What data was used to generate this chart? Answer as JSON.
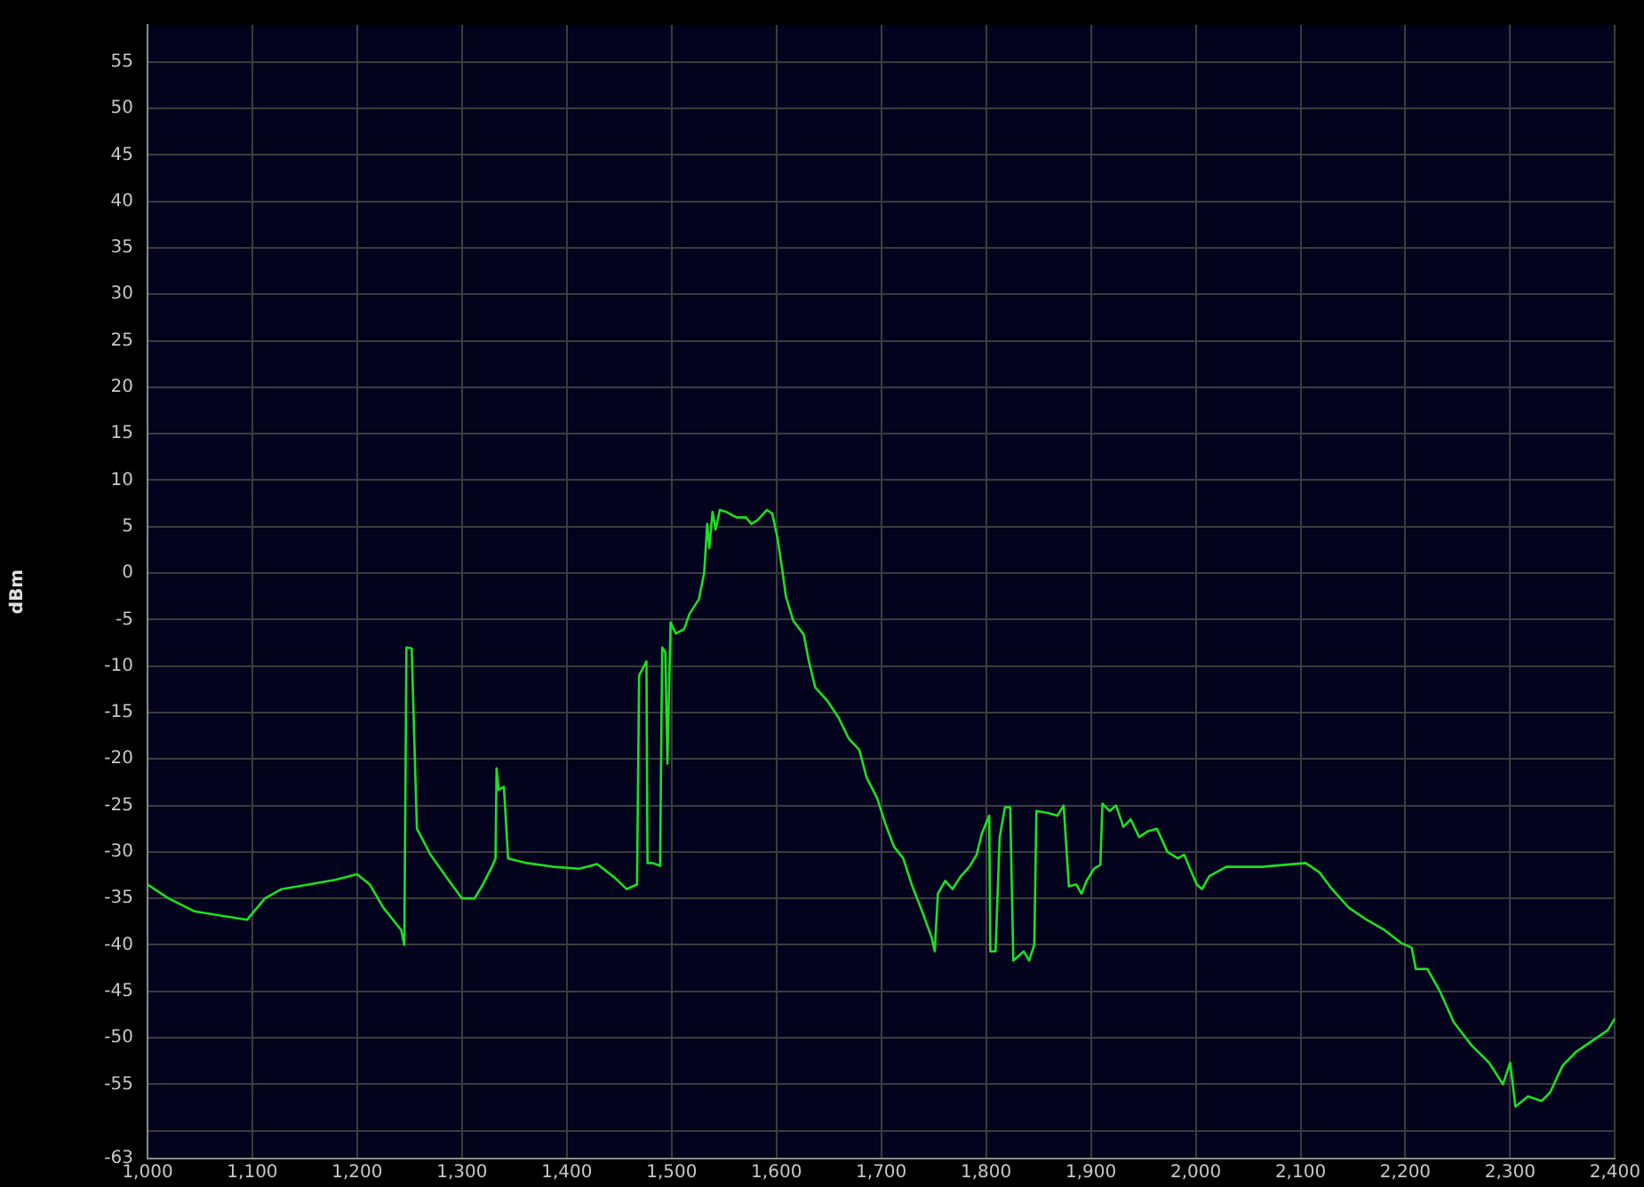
{
  "chart_data": {
    "type": "line",
    "ylabel": "dBm",
    "x": [
      1000,
      1020,
      1045,
      1078,
      1095,
      1112,
      1128,
      1154,
      1179,
      1200,
      1212,
      1225,
      1242,
      1245,
      1247,
      1252,
      1257,
      1270,
      1287,
      1300,
      1312,
      1320,
      1329,
      1332,
      1333,
      1335,
      1340,
      1344,
      1362,
      1387,
      1412,
      1429,
      1446,
      1457,
      1467,
      1469,
      1476,
      1477,
      1482,
      1489,
      1491,
      1494,
      1496,
      1499,
      1504,
      1512,
      1517,
      1526,
      1531,
      1534,
      1536,
      1539,
      1542,
      1546,
      1552,
      1562,
      1571,
      1576,
      1582,
      1591,
      1596,
      1601,
      1606,
      1609,
      1616,
      1626,
      1631,
      1637,
      1649,
      1659,
      1669,
      1679,
      1686,
      1696,
      1704,
      1712,
      1721,
      1729,
      1739,
      1748,
      1751,
      1754,
      1761,
      1768,
      1776,
      1784,
      1791,
      1796,
      1803,
      1804,
      1809,
      1813,
      1818,
      1823,
      1826,
      1836,
      1841,
      1846,
      1848,
      1859,
      1868,
      1874,
      1879,
      1886,
      1891,
      1896,
      1903,
      1909,
      1911,
      1918,
      1924,
      1931,
      1938,
      1946,
      1954,
      1963,
      1973,
      1983,
      1989,
      1996,
      2001,
      2006,
      2013,
      2029,
      2063,
      2105,
      2118,
      2130,
      2146,
      2163,
      2180,
      2196,
      2206,
      2210,
      2221,
      2233,
      2246,
      2263,
      2280,
      2293,
      2300,
      2305,
      2317,
      2330,
      2338,
      2350,
      2363,
      2380,
      2393,
      2400
    ],
    "series": [
      {
        "color": "#1ee01e",
        "values": [
          -33.5,
          -35,
          -36.4,
          -37,
          -37.3,
          -35,
          -34,
          -33.5,
          -33,
          -32.4,
          -33.5,
          -36,
          -38.4,
          -40,
          -8,
          -8.1,
          -27.5,
          -30.3,
          -33,
          -35,
          -35,
          -33.5,
          -31.5,
          -30.7,
          -21,
          -23.3,
          -23,
          -30.7,
          -31.2,
          -31.6,
          -31.8,
          -31.3,
          -32.8,
          -34,
          -33.5,
          -11,
          -9.5,
          -31.2,
          -31.2,
          -31.5,
          -8,
          -8.5,
          -20.5,
          -5.3,
          -6.5,
          -6,
          -4.4,
          -2.8,
          0,
          5.3,
          2.7,
          6.6,
          4.7,
          6.8,
          6.6,
          6,
          6,
          5.3,
          5.7,
          6.8,
          6.4,
          3.8,
          0,
          -2.5,
          -5.1,
          -6.6,
          -9.5,
          -12.3,
          -13.8,
          -15.5,
          -17.8,
          -19,
          -22,
          -24.2,
          -27,
          -29.4,
          -30.7,
          -33.5,
          -36.4,
          -39.2,
          -40.7,
          -34.5,
          -33.1,
          -34,
          -32.6,
          -31.6,
          -30.3,
          -28,
          -26.1,
          -40.7,
          -40.7,
          -28.4,
          -25.2,
          -25.2,
          -41.7,
          -40.7,
          -41.7,
          -40,
          -25.6,
          -25.8,
          -26.1,
          -25,
          -33.7,
          -33.5,
          -34.5,
          -33.1,
          -31.8,
          -31.4,
          -24.8,
          -25.6,
          -25,
          -27.3,
          -26.5,
          -28.4,
          -27.8,
          -27.5,
          -30,
          -30.7,
          -30.3,
          -32.2,
          -33.5,
          -34,
          -32.6,
          -31.6,
          -31.6,
          -31.2,
          -32.2,
          -34,
          -36,
          -37.3,
          -38.4,
          -39.8,
          -40.3,
          -42.6,
          -42.6,
          -45,
          -48.3,
          -50.8,
          -52.7,
          -55,
          -52.7,
          -57.4,
          -56.3,
          -56.8,
          -55.9,
          -53,
          -51.5,
          -50.2,
          -49.2,
          -47.9
        ]
      }
    ],
    "xlim": [
      1000,
      2400
    ],
    "xticks": [
      {
        "value": 1000,
        "label": "1,000"
      },
      {
        "value": 1100,
        "label": "1,100"
      },
      {
        "value": 1200,
        "label": "1,200"
      },
      {
        "value": 1300,
        "label": "1,300"
      },
      {
        "value": 1400,
        "label": "1,400"
      },
      {
        "value": 1500,
        "label": "1,500"
      },
      {
        "value": 1600,
        "label": "1,600"
      },
      {
        "value": 1700,
        "label": "1,700"
      },
      {
        "value": 1800,
        "label": "1,800"
      },
      {
        "value": 1900,
        "label": "1,900"
      },
      {
        "value": 2000,
        "label": "2,000"
      },
      {
        "value": 2100,
        "label": "2,100"
      },
      {
        "value": 2200,
        "label": "2,200"
      },
      {
        "value": 2300,
        "label": "2,300"
      },
      {
        "value": 2400,
        "label": "2,400"
      }
    ],
    "ylim": [
      -63,
      59
    ],
    "yticks": [
      -63,
      {
        "value": -60,
        "label": null
      },
      -55,
      -50,
      -45,
      -40,
      -35,
      -30,
      -25,
      -20,
      -15,
      -10,
      -5,
      0,
      5,
      10,
      15,
      20,
      25,
      30,
      35,
      40,
      45,
      50,
      55
    ],
    "grid": true,
    "legend": false,
    "marker": "none",
    "line_style": "solid"
  }
}
